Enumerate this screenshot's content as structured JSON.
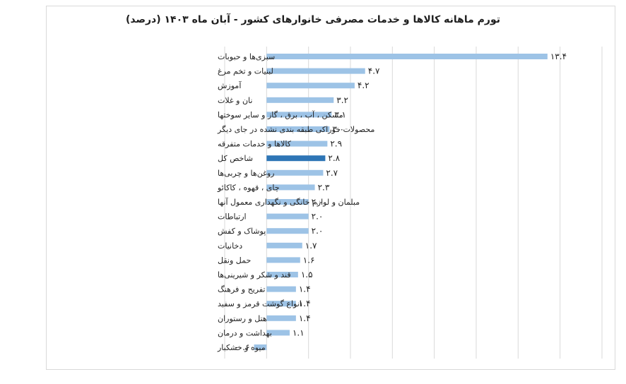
{
  "chart_data": {
    "type": "bar",
    "orientation": "horizontal",
    "title": "تورم ماهانه کالاها و خدمات مصرفی خانوارهای کشور - آبان ماه ۱۴۰۳ (درصد)",
    "categories": [
      "سبزی‌ها و حبوبات",
      "لبنیات و تخم مرغ",
      "آموزش",
      "نان و غلات",
      "مسکن ، آب ، برق ، گاز و سایر سوختها",
      "محصولات خوراکی طبقه بندی نشده در جای دیگر",
      "کالاها و خدمات متفرقه",
      "شاخص کل",
      "روغن‌ها و چربی‌ها",
      "چای ، قهوه ، کاکائو",
      "مبلمان و لوازم خانگی و نگهداری معمول آنها",
      "ارتباطات",
      "پوشاک و کفش",
      "دخانیات",
      "حمل ونقل",
      "قند و شکر و شیرینی‌ها",
      "تفریح و فرهنگ",
      "انواع گوشت قرمز و سفید",
      "هتل و رستوران",
      "بهداشت و درمان",
      "میوه و خشکبار"
    ],
    "values": [
      13.4,
      4.7,
      4.2,
      3.2,
      3.1,
      3.0,
      2.9,
      2.8,
      2.7,
      2.3,
      2.0,
      2.0,
      2.0,
      1.7,
      1.6,
      1.5,
      1.4,
      1.4,
      1.4,
      1.1,
      -0.6
    ],
    "value_labels": [
      "۱۳.۴",
      "۴.۷",
      "۴.۲",
      "۳.۲",
      "۳.۱",
      "۳.۰",
      "۲.۹",
      "۲.۸",
      "۲.۷",
      "۲.۳",
      "۲.۰",
      "۲.۰",
      "۲.۰",
      "۱.۷",
      "۱.۶",
      "۱.۵",
      "۱.۴",
      "۱.۴",
      "۱.۴",
      "۱.۱",
      "-۰.۶"
    ],
    "highlight_category": "شاخص کل",
    "xlim": [
      -2,
      16
    ],
    "gridlines": [
      -2,
      0,
      2,
      4,
      6,
      8,
      10,
      12,
      14,
      16
    ],
    "grid": true,
    "legend": "none",
    "colors": {
      "bar": "#9dc3e6",
      "highlight": "#2e75b6",
      "grid": "#d9d9d9",
      "text": "#222222"
    }
  }
}
